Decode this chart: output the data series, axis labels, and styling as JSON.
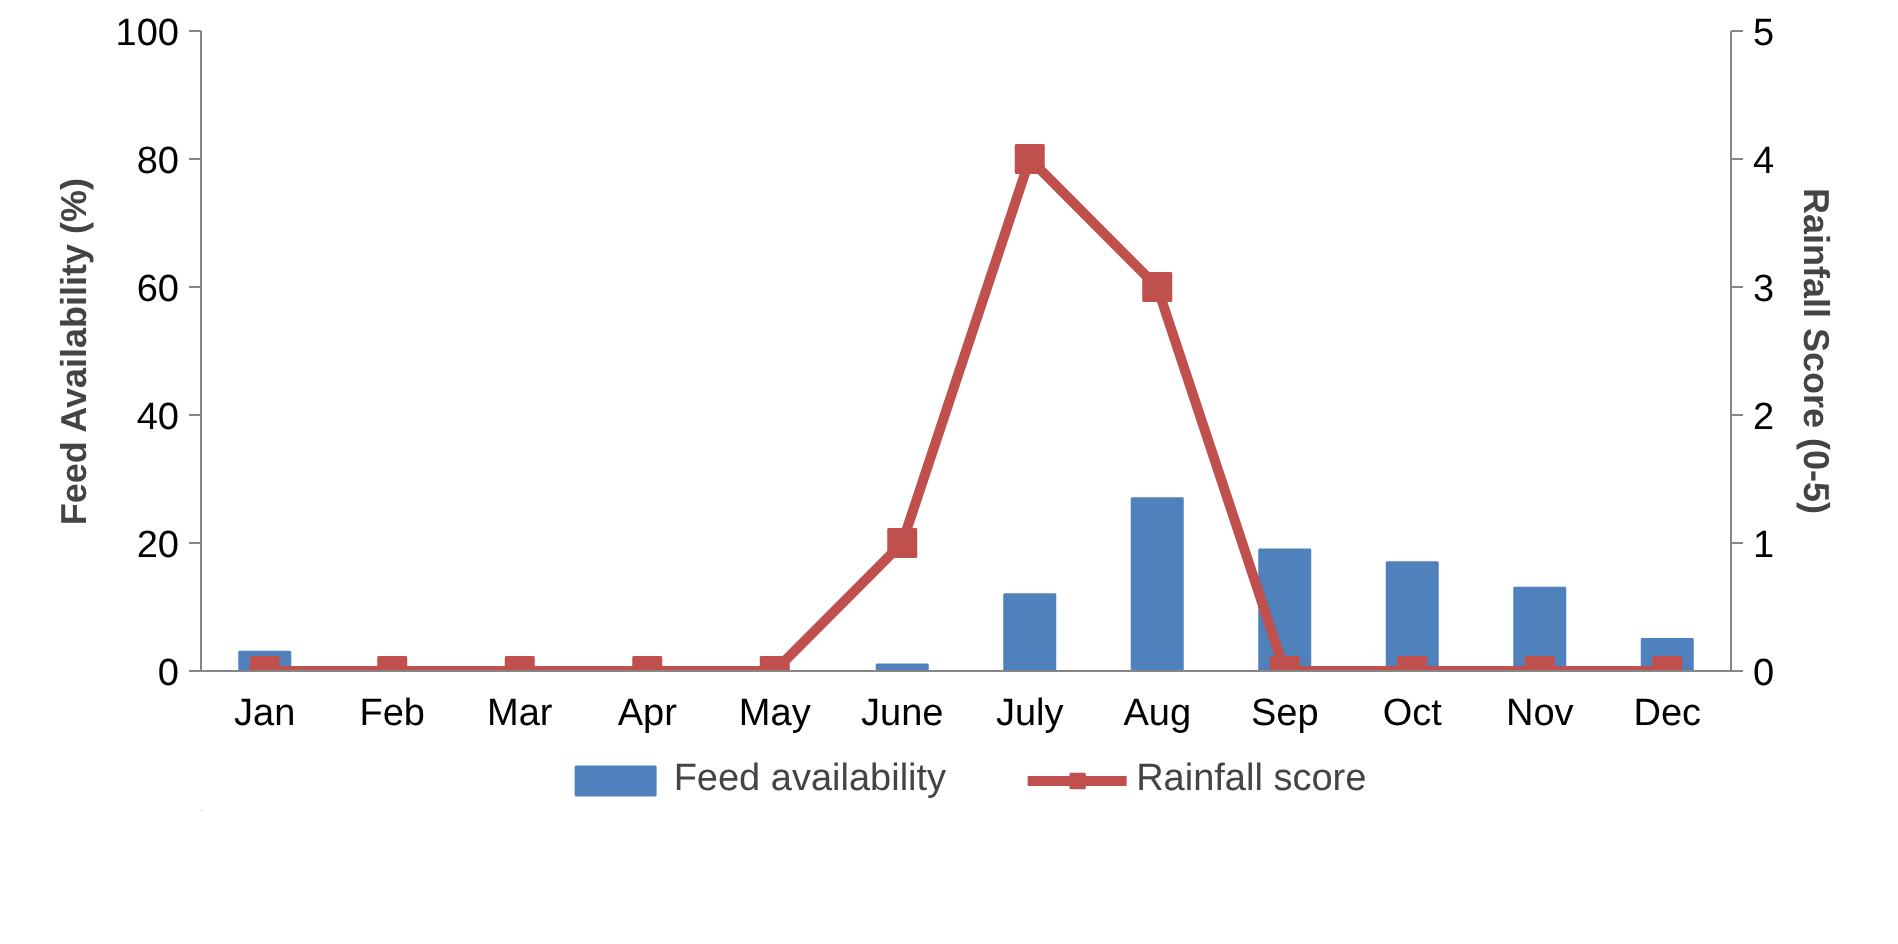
{
  "chart_data": {
    "type": "bar",
    "categories": [
      "Jan",
      "Feb",
      "Mar",
      "Apr",
      "May",
      "June",
      "July",
      "Aug",
      "Sep",
      "Oct",
      "Nov",
      "Dec"
    ],
    "series": [
      {
        "name": "Feed availability",
        "color": "#4f81bd",
        "values": [
          3,
          0,
          0,
          0,
          0,
          1,
          12,
          27,
          19,
          17,
          13,
          5
        ]
      },
      {
        "name": "Rainfall score",
        "type": "line",
        "axis": "y2",
        "color": "#c0504d",
        "values": [
          0,
          0,
          0,
          0,
          0,
          1,
          4,
          3,
          0,
          0,
          0,
          0
        ]
      }
    ],
    "ylabel": "Feed Availability (%)",
    "y2label": "Rainfall Score (0-5)",
    "ylim": [
      0,
      100
    ],
    "yticks": [
      0,
      20,
      40,
      60,
      80,
      100
    ],
    "y2lim": [
      0,
      5
    ],
    "y2ticks": [
      0,
      1,
      2,
      3,
      4,
      5
    ],
    "grid": false,
    "legend": "bottom",
    "marker": "square"
  }
}
